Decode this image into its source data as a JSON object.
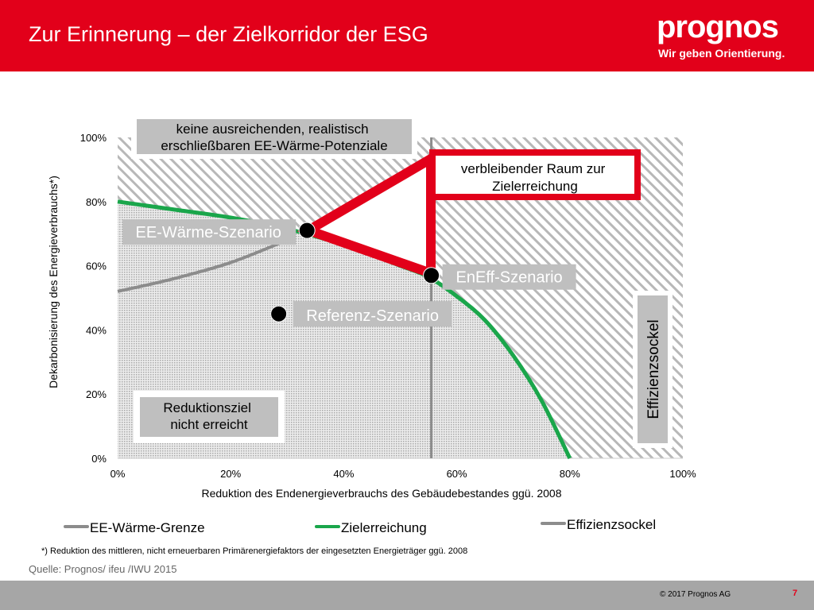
{
  "slide": {
    "title": "Zur Erinnerung – der Zielkorridor der ESG",
    "logo_name": "prognos",
    "logo_tagline": "Wir geben Orientierung.",
    "footnote": "*) Reduktion des mittleren, nicht erneuerbaren Primärenergiefaktors der eingesetzten Energieträger ggü. 2008",
    "source": "Quelle: Prognos/ ifeu /IWU 2015",
    "copyright": "© 2017 Prognos AG",
    "page_number": "7",
    "colors": {
      "brand_red": "#e2001a",
      "green": "#1aa64b",
      "gray_line": "#8c8c8c",
      "footer_gray": "#a6a6a6"
    }
  },
  "chart_data": {
    "type": "line",
    "xlabel": "Reduktion des Endenergieverbrauchs des Gebäudebestandes ggü. 2008",
    "ylabel": "Dekarbonisierung des Energieverbrauchs*)",
    "xlim": [
      0,
      100
    ],
    "ylim": [
      0,
      100
    ],
    "x_ticks": [
      "0%",
      "20%",
      "40%",
      "60%",
      "80%",
      "100%"
    ],
    "y_ticks": [
      "0%",
      "20%",
      "40%",
      "60%",
      "80%",
      "100%"
    ],
    "grid": false,
    "legend_position": "bottom",
    "series": [
      {
        "name": "EE-Wärme-Grenze",
        "color": "#8c8c8c",
        "x": [
          0,
          10,
          20,
          30
        ],
        "y": [
          52,
          56,
          61,
          68
        ]
      },
      {
        "name": "Zielerreichung",
        "color": "#1aa64b",
        "x": [
          0,
          10,
          20,
          30,
          40,
          50,
          55,
          60,
          65,
          70,
          75,
          80
        ],
        "y": [
          80,
          77.5,
          75,
          71.5,
          66.5,
          60,
          56.5,
          50.5,
          43,
          32,
          18,
          0
        ]
      },
      {
        "name": "Effizienzsockel",
        "color": "#8c8c8c",
        "x": [
          55.5,
          55.5
        ],
        "y": [
          0,
          100
        ]
      }
    ],
    "points": [
      {
        "label": "EE-Wärme-Szenario",
        "x": 33.5,
        "y": 71
      },
      {
        "label": "EnEff-Szenario",
        "x": 55.5,
        "y": 57
      },
      {
        "label": "Referenz-Szenario",
        "x": 28.5,
        "y": 45
      }
    ],
    "annotations": {
      "top_region": "keine ausreichenden, realistisch erschließbaren EE-Wärme-Potenziale",
      "target_space": "verbleibender Raum zur Zielerreichung",
      "bottom_region": "Reduktionsziel nicht erreicht",
      "right_region": "Effizienzsockel"
    }
  }
}
